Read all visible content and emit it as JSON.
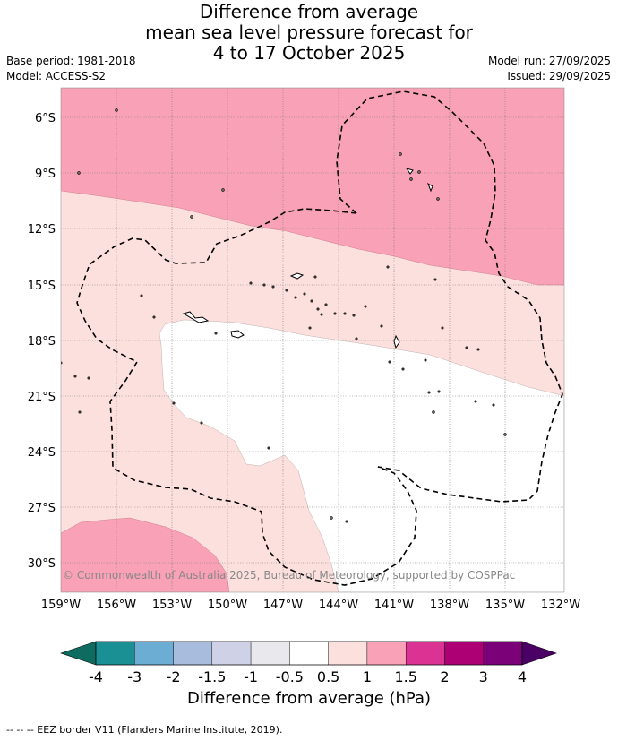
{
  "title": {
    "line1": "Difference from average",
    "line2": "mean sea level pressure forecast for",
    "line3": "4 to 17 October 2025"
  },
  "meta": {
    "base_period": "Base period: 1981-2018",
    "model": "Model: ACCESS-S2",
    "model_run": "Model run: 27/09/2025",
    "issued": "Issued: 29/09/2025"
  },
  "map": {
    "lat_labels": [
      "6°S",
      "9°S",
      "12°S",
      "15°S",
      "18°S",
      "21°S",
      "24°S",
      "27°S",
      "30°S"
    ],
    "lon_labels": [
      "159°W",
      "156°W",
      "153°W",
      "150°W",
      "147°W",
      "144°W",
      "141°W",
      "138°W",
      "135°W",
      "132°W"
    ],
    "copyright": "© Commonwealth of Australia 2025, Bureau of Meteorology, supported by COSPPac",
    "colors": {
      "band_1_to_1_5": "#f9a1b6",
      "band_0_5_to_1": "#fce0de",
      "band_neutral": "#ffffff"
    }
  },
  "colorbar": {
    "tick_labels": [
      "-4",
      "-3",
      "-2",
      "-1.5",
      "-1",
      "-0.5",
      "0.5",
      "1",
      "1.5",
      "2",
      "3",
      "4"
    ],
    "colors": [
      "#1a8f94",
      "#6badd3",
      "#a8bcdd",
      "#cfd1e6",
      "#e9e8ec",
      "#ffffff",
      "#fce0de",
      "#f9a1b6",
      "#db3394",
      "#ad0074",
      "#7a0177"
    ],
    "low_extend_color": "#0d6b60",
    "high_extend_color": "#4b0066",
    "title": "Difference from average (hPa)"
  },
  "footnote": "--  --  -- EEZ border V11 (Flanders Marine Institute, 2019)."
}
